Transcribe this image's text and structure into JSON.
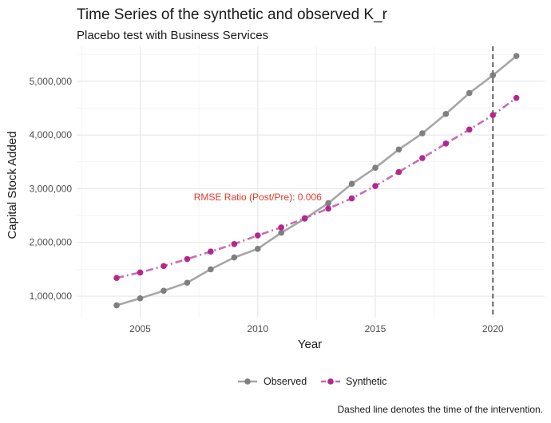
{
  "chart_data": {
    "type": "line",
    "title": "Time Series of the synthetic and observed K_r",
    "subtitle": "Placebo test with Business Services",
    "xlabel": "Year",
    "ylabel": "Capital Stock Added",
    "caption": "Dashed line denotes the time of the intervention.",
    "annotation": {
      "text": "RMSE Ratio (Post/Pre): 0.006",
      "x": 2010,
      "y": 2780000,
      "color": "#e8382b"
    },
    "intervention_year": 2020,
    "xlim": [
      2002.3,
      2022.2
    ],
    "ylim": [
      600000,
      5650000
    ],
    "x_ticks": [
      2005,
      2010,
      2015,
      2020
    ],
    "x_tick_labels": [
      "2005",
      "2010",
      "2015",
      "2020"
    ],
    "y_ticks": [
      1000000,
      2000000,
      3000000,
      4000000,
      5000000
    ],
    "y_tick_labels": [
      "1,000,000",
      "2,000,000",
      "3,000,000",
      "4,000,000",
      "5,000,000"
    ],
    "grid": true,
    "legend_position": "bottom",
    "x": [
      2004,
      2005,
      2006,
      2007,
      2008,
      2009,
      2010,
      2011,
      2012,
      2013,
      2014,
      2015,
      2016,
      2017,
      2018,
      2019,
      2020,
      2021
    ],
    "series": [
      {
        "name": "Observed",
        "color": "#a6a6a6",
        "point_color": "#7f7f7f",
        "linestyle": "solid",
        "values": [
          830000,
          960000,
          1100000,
          1250000,
          1500000,
          1720000,
          1880000,
          2180000,
          2440000,
          2730000,
          3090000,
          3390000,
          3730000,
          4030000,
          4390000,
          4780000,
          5110000,
          5470000
        ]
      },
      {
        "name": "Synthetic",
        "color": "#c46fb1",
        "point_color": "#b5268f",
        "linestyle": "dashed",
        "values": [
          1340000,
          1440000,
          1560000,
          1690000,
          1830000,
          1970000,
          2130000,
          2280000,
          2450000,
          2630000,
          2820000,
          3050000,
          3310000,
          3570000,
          3840000,
          4100000,
          4370000,
          4690000
        ]
      }
    ]
  }
}
